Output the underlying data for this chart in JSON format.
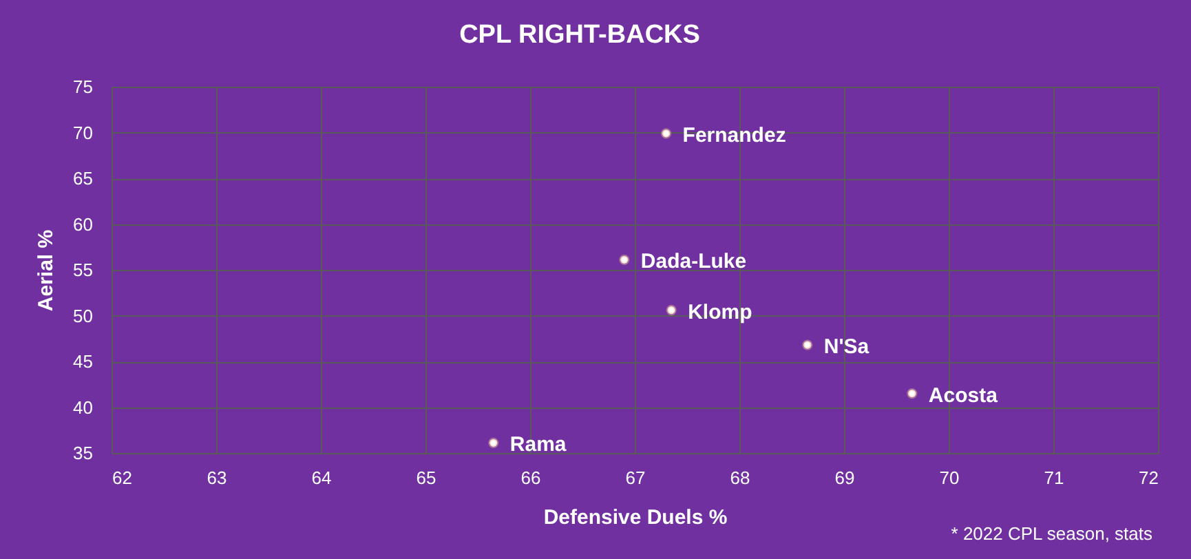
{
  "chart_data": {
    "type": "scatter",
    "title": "CPL RIGHT-BACKS",
    "xlabel": "Defensive Duels %",
    "ylabel": "Aerial %",
    "annotations": [
      "* 2022 CPL season, stats"
    ],
    "series": [
      {
        "name": "Fernandez",
        "color": "#ffffff",
        "x": [
          67.3
        ],
        "values": [
          69.9
        ]
      },
      {
        "name": "Dada-Luke",
        "color": "#ffffff",
        "x": [
          66.9
        ],
        "values": [
          56.1
        ]
      },
      {
        "name": "Klomp",
        "color": "#ffffff",
        "x": [
          67.35
        ],
        "values": [
          50.6
        ]
      },
      {
        "name": "N'Sa",
        "color": "#ffffff",
        "x": [
          68.65
        ],
        "values": [
          46.8
        ]
      },
      {
        "name": "Acosta",
        "color": "#ffffff",
        "x": [
          69.65
        ],
        "values": [
          41.5
        ]
      },
      {
        "name": "Rama",
        "color": "#ffffff",
        "x": [
          65.65
        ],
        "values": [
          36.1
        ]
      }
    ],
    "xlim": [
      62,
      72
    ],
    "ylim": [
      35,
      75
    ],
    "xticks": [
      62,
      63,
      64,
      65,
      66,
      67,
      68,
      69,
      70,
      71,
      72
    ],
    "yticks": [
      35,
      40,
      45,
      50,
      55,
      60,
      65,
      70,
      75
    ],
    "grid": true,
    "legend": false,
    "marker": "circle"
  }
}
